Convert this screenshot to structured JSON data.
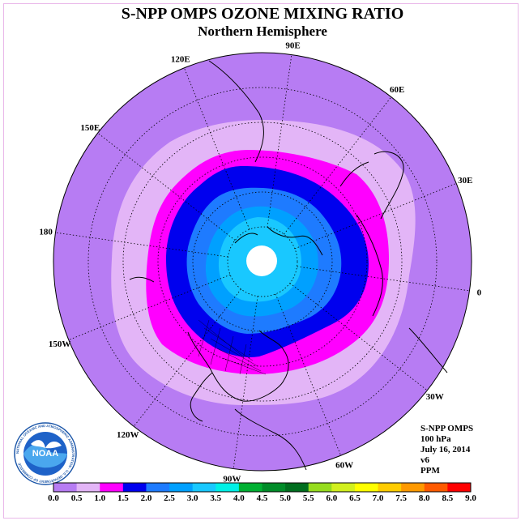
{
  "title": "S-NPP OMPS OZONE MIXING RATIO",
  "subtitle": "Northern Hemisphere",
  "longitude_labels": [
    {
      "text": "90E",
      "lon": 90
    },
    {
      "text": "60E",
      "lon": 60
    },
    {
      "text": "30E",
      "lon": 30
    },
    {
      "text": "0",
      "lon": 0
    },
    {
      "text": "30W",
      "lon": -30
    },
    {
      "text": "60W",
      "lon": -60
    },
    {
      "text": "90W",
      "lon": -90
    },
    {
      "text": "120W",
      "lon": -120
    },
    {
      "text": "150W",
      "lon": -150
    },
    {
      "text": "180",
      "lon": 180
    },
    {
      "text": "150E",
      "lon": 150
    },
    {
      "text": "120E",
      "lon": 120
    }
  ],
  "info": {
    "line1": "S-NPP OMPS",
    "line2": "100 hPa",
    "line3": "July 16, 2014",
    "line4": "v6",
    "line5": "PPM"
  },
  "logo": {
    "text": "NOAA",
    "ring_text": "NATIONAL OCEANIC AND ATMOSPHERIC ADMINISTRATION · U.S. DEPARTMENT OF COMMERCE"
  },
  "colorbar": {
    "labels": [
      "0.0",
      "0.5",
      "1.0",
      "1.5",
      "2.0",
      "2.5",
      "3.0",
      "3.5",
      "4.0",
      "4.5",
      "5.0",
      "5.5",
      "6.0",
      "6.5",
      "7.0",
      "7.5",
      "8.0",
      "8.5",
      "9.0"
    ],
    "colors": [
      "#b77cf3",
      "#e3b5f7",
      "#ff00ff",
      "#0000ee",
      "#1e7bff",
      "#00a0ff",
      "#19c8ff",
      "#00f0e6",
      "#00b032",
      "#008c28",
      "#006e1e",
      "#96dc1e",
      "#d2f01e",
      "#ffff00",
      "#ffcc00",
      "#ff9900",
      "#ff5a00",
      "#ff0000",
      "#8b5a32"
    ]
  },
  "contour_bands": [
    {
      "value": 0.25,
      "color": "#b77cf3"
    },
    {
      "value": 0.75,
      "color": "#e3b5f7"
    },
    {
      "value": 1.25,
      "color": "#ff00ff"
    },
    {
      "value": 1.75,
      "color": "#0000ee"
    },
    {
      "value": 2.25,
      "color": "#1e7bff"
    },
    {
      "value": 2.75,
      "color": "#00a0ff"
    },
    {
      "value": 3.25,
      "color": "#19c8ff"
    }
  ]
}
